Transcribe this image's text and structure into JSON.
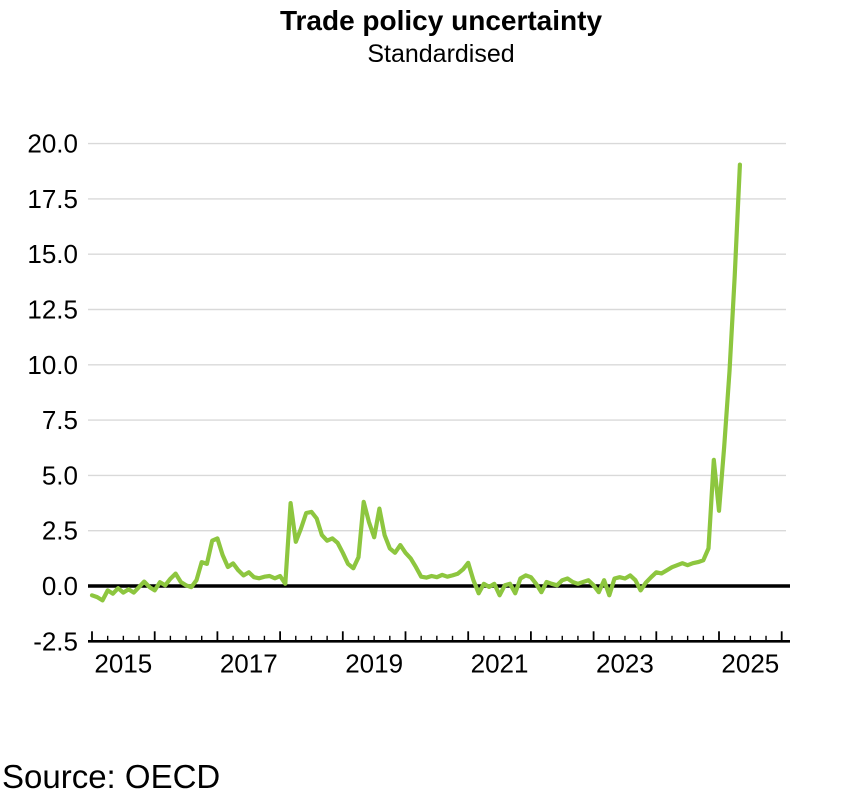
{
  "header": {
    "title": "Trade policy uncertainty",
    "subtitle": "Standardised"
  },
  "footer": {
    "source": "Source: OECD"
  },
  "chart_data": {
    "type": "line",
    "title": "Trade policy uncertainty",
    "subtitle": "Standardised",
    "xlabel": "",
    "ylabel": "",
    "legend": "none",
    "grid": "horizontal",
    "grid_color": "#d9d9d9",
    "axis_color": "#000000",
    "zero_line": true,
    "zero_line_color": "#000000",
    "line_color": "#8dc63f",
    "ylim": [
      -2.5,
      20.8
    ],
    "xlim_years": [
      2014.93,
      2026.13
    ],
    "y_ticks": [
      {
        "value": 20.0,
        "label": "20.0"
      },
      {
        "value": 17.5,
        "label": "17.5"
      },
      {
        "value": 15.0,
        "label": "15.0"
      },
      {
        "value": 12.5,
        "label": "12.5"
      },
      {
        "value": 10.0,
        "label": "10.0"
      },
      {
        "value": 7.5,
        "label": "7.5"
      },
      {
        "value": 5.0,
        "label": "5.0"
      },
      {
        "value": 2.5,
        "label": "2.5"
      },
      {
        "value": 0.0,
        "label": "0.0"
      },
      {
        "value": -2.5,
        "label": "-2.5"
      }
    ],
    "x_year_ticks": [
      2015,
      2016,
      2017,
      2018,
      2019,
      2020,
      2021,
      2022,
      2023,
      2024,
      2025,
      2026
    ],
    "x_minor_ticks_per_year": 4,
    "x_tick_labels": [
      {
        "year": 2015,
        "label": "2015"
      },
      {
        "year": 2017,
        "label": "2017"
      },
      {
        "year": 2019,
        "label": "2019"
      },
      {
        "year": 2021,
        "label": "2021"
      },
      {
        "year": 2023,
        "label": "2023"
      },
      {
        "year": 2025,
        "label": "2025"
      }
    ],
    "series": [
      {
        "name": "Trade policy uncertainty (standardised)",
        "frequency": "monthly",
        "start": "2015-01",
        "end": "2025-05",
        "values": [
          -0.42,
          -0.5,
          -0.65,
          -0.2,
          -0.35,
          -0.1,
          -0.3,
          -0.15,
          -0.3,
          -0.05,
          0.2,
          -0.05,
          -0.2,
          0.17,
          0.03,
          0.33,
          0.56,
          0.18,
          0.03,
          -0.05,
          0.26,
          1.08,
          1.0,
          2.05,
          2.15,
          1.4,
          0.86,
          1.02,
          0.71,
          0.48,
          0.62,
          0.4,
          0.35,
          0.42,
          0.45,
          0.35,
          0.45,
          0.1,
          3.75,
          2.0,
          2.6,
          3.3,
          3.35,
          3.05,
          2.3,
          2.05,
          2.15,
          1.95,
          1.5,
          1.0,
          0.8,
          1.3,
          3.8,
          2.9,
          2.2,
          3.5,
          2.3,
          1.7,
          1.5,
          1.85,
          1.5,
          1.25,
          0.85,
          0.42,
          0.38,
          0.45,
          0.4,
          0.5,
          0.42,
          0.48,
          0.55,
          0.75,
          1.05,
          0.26,
          -0.33,
          0.1,
          -0.04,
          0.1,
          -0.42,
          0.03,
          0.1,
          -0.33,
          0.34,
          0.48,
          0.4,
          0.1,
          -0.28,
          0.18,
          0.1,
          0.03,
          0.26,
          0.34,
          0.18,
          0.1,
          0.18,
          0.26,
          0.03,
          -0.28,
          0.26,
          -0.42,
          0.34,
          0.4,
          0.34,
          0.48,
          0.26,
          -0.2,
          0.15,
          0.4,
          0.62,
          0.57,
          0.71,
          0.85,
          0.94,
          1.03,
          0.94,
          1.03,
          1.08,
          1.16,
          1.7,
          5.7,
          3.4,
          6.3,
          9.7,
          14.0,
          19.05
        ]
      }
    ],
    "source": "Source: OECD"
  }
}
